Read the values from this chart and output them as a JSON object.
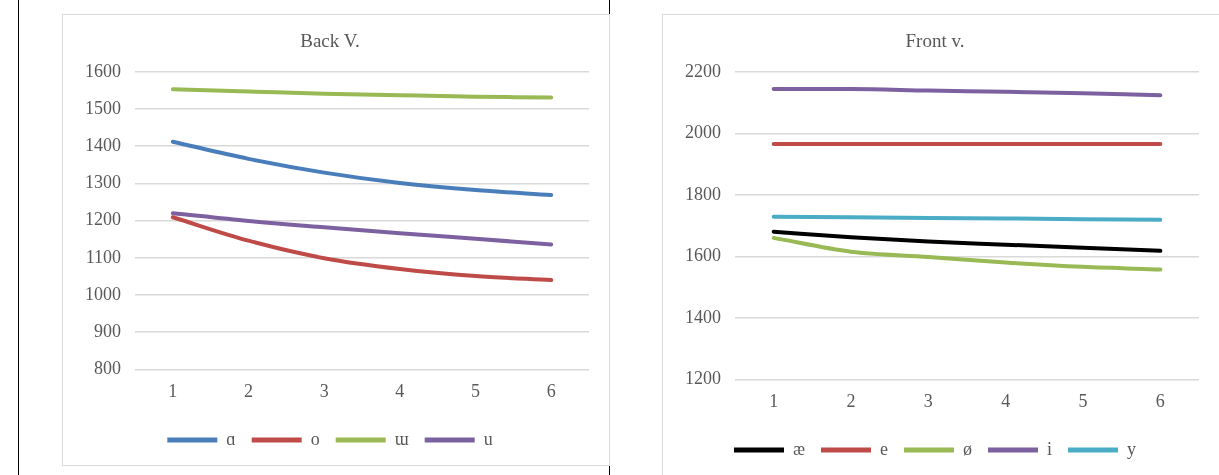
{
  "chart_data": [
    {
      "type": "line",
      "title": "Back V.",
      "categories": [
        "1",
        "2",
        "3",
        "4",
        "5",
        "6"
      ],
      "ylim": [
        800,
        1600
      ],
      "yticks": [
        800,
        900,
        1000,
        1100,
        1200,
        1300,
        1400,
        1500,
        1600
      ],
      "grid": "y",
      "legend": "bottom",
      "marker": "none",
      "series": [
        {
          "name": "ɑ",
          "color": "#4a7ebb",
          "values": [
            1412,
            1366,
            1329,
            1301,
            1282,
            1269
          ]
        },
        {
          "name": "o",
          "color": "#be4b48",
          "values": [
            1209,
            1146,
            1099,
            1070,
            1051,
            1040
          ]
        },
        {
          "name": "ɯ",
          "color": "#98b954",
          "values": [
            1553,
            1547,
            1541,
            1537,
            1533,
            1531
          ]
        },
        {
          "name": "u",
          "color": "#7d60a0",
          "values": [
            1220,
            1199,
            1182,
            1166,
            1151,
            1136
          ]
        }
      ]
    },
    {
      "type": "line",
      "title": "Front v.",
      "categories": [
        "1",
        "2",
        "3",
        "4",
        "5",
        "6"
      ],
      "ylim": [
        1200,
        2200
      ],
      "yticks": [
        1200,
        1400,
        1600,
        1800,
        2000,
        2200
      ],
      "grid": "y",
      "legend": "bottom",
      "marker": "none",
      "series": [
        {
          "name": "æ",
          "color": "#000000",
          "values": [
            1680,
            1662,
            1648,
            1638,
            1628,
            1618
          ]
        },
        {
          "name": "e",
          "color": "#be4b48",
          "values": [
            1965,
            1965,
            1965,
            1965,
            1965,
            1965
          ]
        },
        {
          "name": "ø",
          "color": "#98b954",
          "values": [
            1660,
            1615,
            1598,
            1580,
            1566,
            1557
          ]
        },
        {
          "name": "i",
          "color": "#7d60a0",
          "values": [
            2144,
            2144,
            2139,
            2135,
            2130,
            2124
          ]
        },
        {
          "name": "y",
          "color": "#4bacc6",
          "values": [
            1729,
            1727,
            1725,
            1723,
            1721,
            1719
          ]
        }
      ]
    }
  ]
}
